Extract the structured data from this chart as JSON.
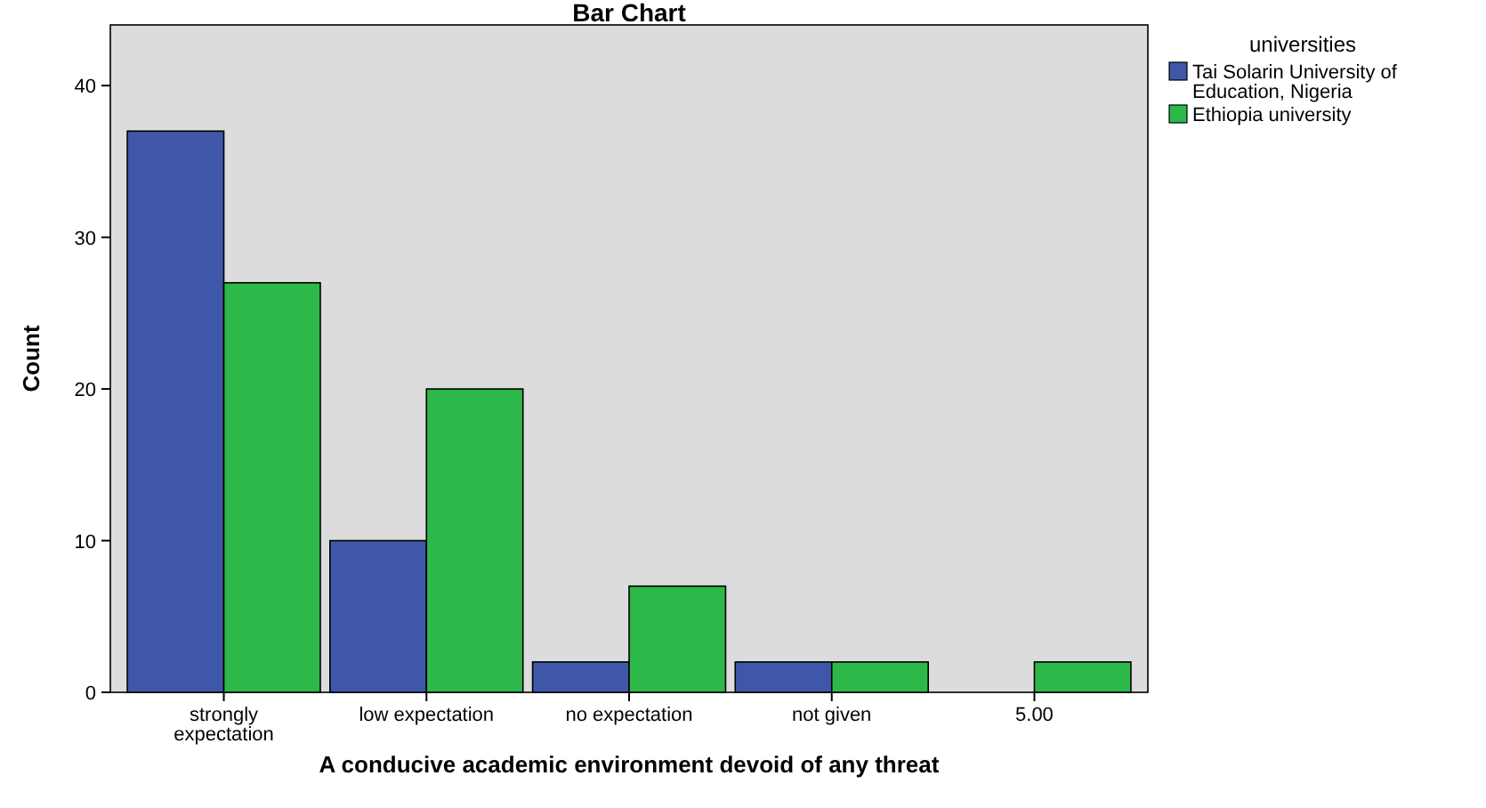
{
  "chart_data": {
    "type": "bar",
    "title": "Bar Chart",
    "xlabel": "A conducive academic environment devoid of any threat",
    "ylabel": "Count",
    "legend_title": "universities",
    "categories": [
      "strongly expectation",
      "low expectation",
      "no expectation",
      "not given",
      "5.00"
    ],
    "series": [
      {
        "name": "Tai Solarin University of Education, Nigeria",
        "color": "#3e57a8",
        "values": [
          37,
          10,
          2,
          2,
          null
        ]
      },
      {
        "name": "Ethiopia university",
        "color": "#2db84a",
        "values": [
          27,
          20,
          7,
          2,
          2
        ]
      }
    ],
    "ylim": [
      0,
      44
    ],
    "yticks": [
      0,
      10,
      20,
      30,
      40
    ],
    "grid": false,
    "legend": "top right"
  }
}
